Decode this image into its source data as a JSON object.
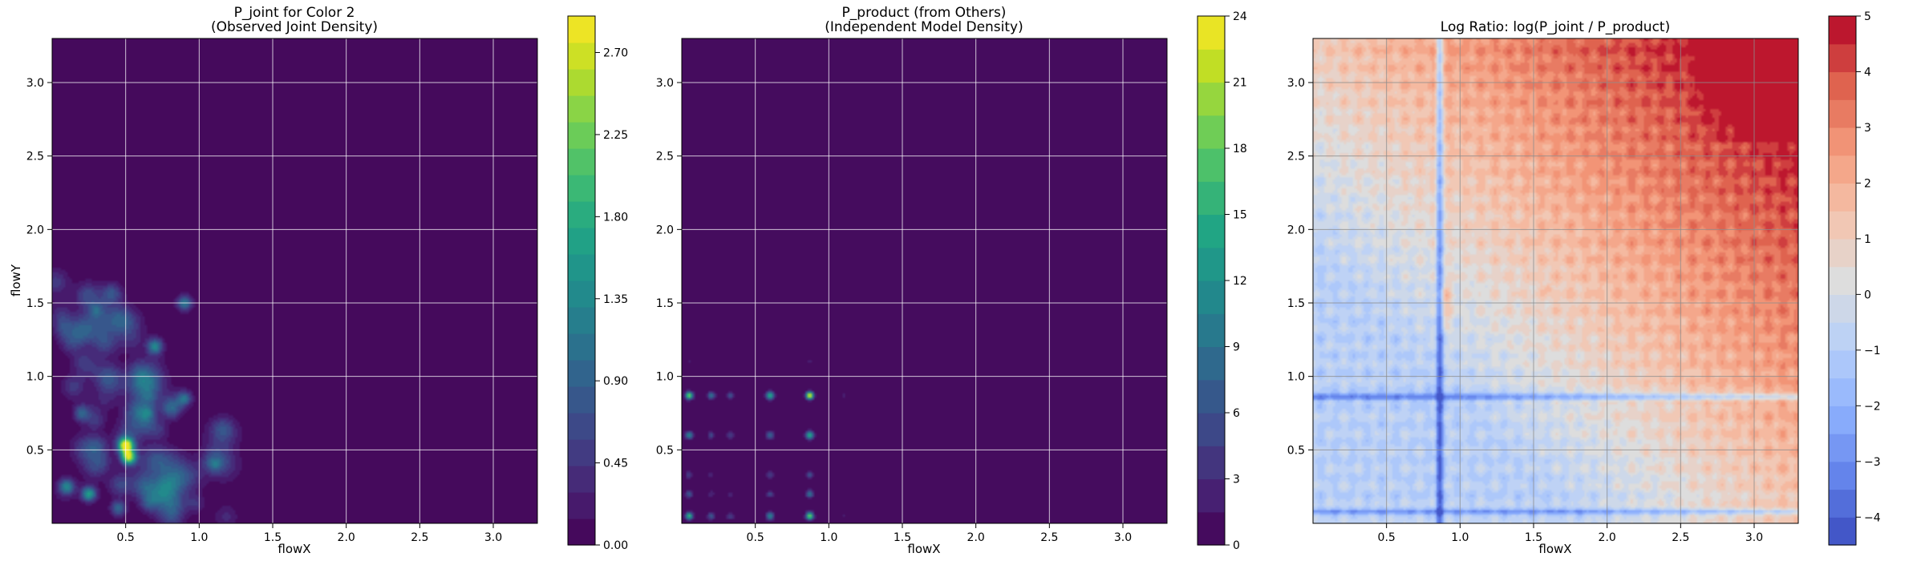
{
  "chart_data": [
    {
      "type": "heatmap",
      "title": "P_joint for Color 2",
      "subtitle": "(Observed Joint Density)",
      "xlabel": "flowX",
      "ylabel": "flowY",
      "xlim": [
        0.0,
        3.3
      ],
      "ylim": [
        0.0,
        3.3
      ],
      "xticks": [
        0.5,
        1.0,
        1.5,
        2.0,
        2.5,
        3.0
      ],
      "xtick_labels": [
        "0.5",
        "1.0",
        "1.5",
        "2.0",
        "2.5",
        "3.0"
      ],
      "yticks": [
        0.5,
        1.0,
        1.5,
        2.0,
        2.5,
        3.0
      ],
      "ytick_labels": [
        "0.5",
        "1.0",
        "1.5",
        "2.0",
        "2.5",
        "3.0"
      ],
      "grid": true,
      "colormap": "viridis",
      "colorbar": {
        "min": 0.0,
        "max": 2.9,
        "ticks": [
          0.0,
          0.45,
          0.9,
          1.35,
          1.8,
          2.25,
          2.7
        ],
        "tick_labels": [
          "0.00",
          "0.45",
          "0.90",
          "1.35",
          "1.80",
          "2.25",
          "2.70"
        ]
      },
      "peaks": [
        {
          "x": 0.5,
          "y": 0.53,
          "value": 2.9
        },
        {
          "x": 0.52,
          "y": 0.45,
          "value": 2.6
        },
        {
          "x": 0.25,
          "y": 0.2,
          "value": 1.6
        },
        {
          "x": 0.1,
          "y": 0.25,
          "value": 1.2
        },
        {
          "x": 0.45,
          "y": 0.1,
          "value": 1.0
        },
        {
          "x": 0.9,
          "y": 1.5,
          "value": 1.2
        },
        {
          "x": 0.7,
          "y": 1.2,
          "value": 1.0
        },
        {
          "x": 0.9,
          "y": 0.85,
          "value": 1.0
        },
        {
          "x": 0.2,
          "y": 0.75,
          "value": 0.8
        },
        {
          "x": 0.3,
          "y": 1.45,
          "value": 0.6
        },
        {
          "x": 0.65,
          "y": 0.75,
          "value": 0.7
        },
        {
          "x": 1.1,
          "y": 0.4,
          "value": 0.5
        }
      ]
    },
    {
      "type": "heatmap",
      "title": "P_product (from Others)",
      "subtitle": "(Independent Model Density)",
      "xlabel": "flowX",
      "ylabel": "",
      "xlim": [
        0.0,
        3.3
      ],
      "ylim": [
        0.0,
        3.3
      ],
      "xticks": [
        0.5,
        1.0,
        1.5,
        2.0,
        2.5,
        3.0
      ],
      "xtick_labels": [
        "0.5",
        "1.0",
        "1.5",
        "2.0",
        "2.5",
        "3.0"
      ],
      "yticks": [
        0.5,
        1.0,
        1.5,
        2.0,
        2.5,
        3.0
      ],
      "ytick_labels": [
        "0.5",
        "1.0",
        "1.5",
        "2.0",
        "2.5",
        "3.0"
      ],
      "grid": true,
      "colormap": "viridis",
      "colorbar": {
        "min": 0,
        "max": 24,
        "ticks": [
          0,
          3,
          6,
          9,
          12,
          15,
          18,
          21,
          24
        ],
        "tick_labels": [
          "0",
          "3",
          "6",
          "9",
          "12",
          "15",
          "18",
          "21",
          "24"
        ]
      },
      "peaks": [
        {
          "x": 0.87,
          "y": 0.87,
          "value": 24
        },
        {
          "x": 0.05,
          "y": 0.87,
          "value": 6
        },
        {
          "x": 0.87,
          "y": 0.08,
          "value": 6
        },
        {
          "x": 0.05,
          "y": 0.08,
          "value": 4
        },
        {
          "x": 0.6,
          "y": 0.87,
          "value": 4
        },
        {
          "x": 0.87,
          "y": 0.6,
          "value": 4
        }
      ]
    },
    {
      "type": "heatmap",
      "title": "Log Ratio: log(P_joint / P_product)",
      "xlabel": "flowX",
      "ylabel": "",
      "xlim": [
        0.0,
        3.3
      ],
      "ylim": [
        0.0,
        3.3
      ],
      "xticks": [
        0.5,
        1.0,
        1.5,
        2.0,
        2.5,
        3.0
      ],
      "xtick_labels": [
        "0.5",
        "1.0",
        "1.5",
        "2.0",
        "2.5",
        "3.0"
      ],
      "yticks": [
        0.5,
        1.0,
        1.5,
        2.0,
        2.5,
        3.0
      ],
      "ytick_labels": [
        "0.5",
        "1.0",
        "1.5",
        "2.0",
        "2.5",
        "3.0"
      ],
      "grid": true,
      "colormap": "coolwarm",
      "colorbar": {
        "min": -4.5,
        "max": 5,
        "ticks": [
          -4,
          -3,
          -2,
          -1,
          0,
          1,
          2,
          3,
          4,
          5
        ],
        "tick_labels": [
          "−4",
          "−3",
          "−2",
          "−1",
          "0",
          "1",
          "2",
          "3",
          "4",
          "5"
        ]
      },
      "negative_lines_x": [
        0.85,
        0.87
      ],
      "negative_lines_y": [
        0.85,
        0.87,
        0.08
      ],
      "top_right_value": 5
    }
  ]
}
